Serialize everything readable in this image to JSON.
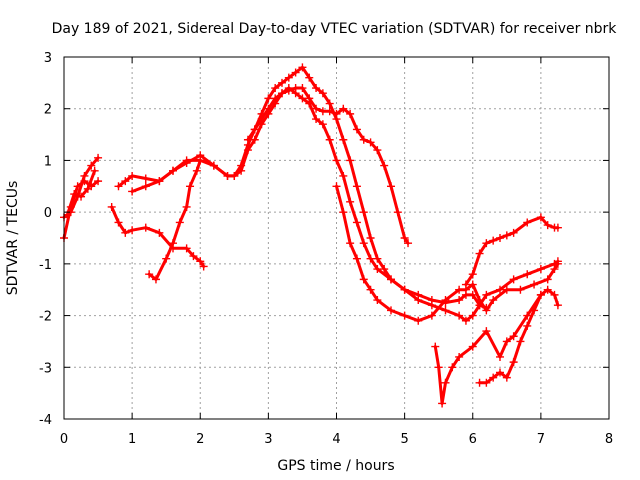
{
  "chart_data": {
    "type": "scatter",
    "title": "Day 189 of 2021, Sidereal Day-to-day VTEC variation (SDTVAR) for receiver nbrk",
    "xlabel": "GPS time / hours",
    "ylabel": "SDTVAR / TECUs",
    "xlim": [
      0,
      8
    ],
    "ylim": [
      -4,
      3
    ],
    "xticks": [
      "0",
      "1",
      "2",
      "3",
      "4",
      "5",
      "6",
      "7",
      "8"
    ],
    "yticks": [
      "-4",
      "-3",
      "-2",
      "-1",
      "0",
      "1",
      "2",
      "3"
    ],
    "grid": true,
    "marker": "+",
    "color": "#ff0000",
    "series": [
      {
        "x": [
          0.0,
          0.1,
          0.2,
          0.3,
          0.4,
          0.5
        ],
        "y": [
          -0.5,
          0.1,
          0.5,
          0.6,
          0.5,
          0.6
        ]
      },
      {
        "x": [
          0.0,
          0.1,
          0.2,
          0.3,
          0.4,
          0.5
        ],
        "y": [
          -0.1,
          0.0,
          0.3,
          0.7,
          0.9,
          1.05
        ]
      },
      {
        "x": [
          0.05,
          0.15,
          0.25,
          0.35,
          0.45
        ],
        "y": [
          -0.05,
          0.35,
          0.3,
          0.45,
          0.8
        ]
      },
      {
        "x": [
          0.7,
          0.8,
          0.9,
          1.0,
          1.2,
          1.4,
          1.6,
          1.8,
          1.9,
          2.0,
          2.05
        ],
        "y": [
          0.1,
          -0.2,
          -0.4,
          -0.35,
          -0.3,
          -0.4,
          -0.7,
          -0.7,
          -0.85,
          -0.95,
          -1.05
        ]
      },
      {
        "x": [
          1.25,
          1.35,
          1.5,
          1.6,
          1.7,
          1.8,
          1.85,
          1.95,
          2.0
        ],
        "y": [
          -1.2,
          -1.3,
          -0.9,
          -0.6,
          -0.2,
          0.1,
          0.5,
          0.8,
          1.0
        ]
      },
      {
        "x": [
          0.8,
          0.9,
          1.0,
          1.2,
          1.4,
          1.6,
          1.8,
          2.0,
          2.2,
          2.4,
          2.5,
          2.6,
          2.7,
          2.8,
          2.9,
          3.0,
          3.1,
          3.2,
          3.3,
          3.4,
          3.5,
          3.6,
          3.7,
          3.8,
          3.9,
          4.0,
          4.1,
          4.2,
          4.3,
          4.4,
          4.5,
          4.6,
          4.7,
          4.8,
          4.9,
          5.0,
          5.05
        ],
        "y": [
          0.5,
          0.6,
          0.7,
          0.65,
          0.6,
          0.8,
          0.95,
          1.1,
          0.9,
          0.7,
          0.7,
          0.9,
          1.3,
          1.6,
          1.8,
          2.0,
          2.2,
          2.3,
          2.35,
          2.4,
          2.4,
          2.2,
          2.0,
          1.95,
          1.95,
          1.9,
          2.0,
          1.9,
          1.6,
          1.4,
          1.35,
          1.2,
          0.9,
          0.5,
          0.0,
          -0.5,
          -0.6
        ]
      },
      {
        "x": [
          1.0,
          1.2,
          1.4,
          1.6,
          1.8,
          2.0,
          2.2,
          2.4,
          2.5,
          2.6,
          2.7,
          2.8,
          2.9,
          3.0,
          3.1,
          3.2,
          3.3,
          3.4,
          3.5,
          3.6,
          3.7,
          3.8,
          3.9,
          4.0,
          4.1,
          4.2,
          4.3,
          4.4,
          4.5,
          4.6,
          4.8,
          5.0,
          5.2,
          5.4,
          5.6,
          5.8,
          5.9,
          6.0,
          6.1,
          6.2
        ],
        "y": [
          0.4,
          0.5,
          0.6,
          0.8,
          1.0,
          1.0,
          0.9,
          0.7,
          0.7,
          0.8,
          1.2,
          1.4,
          1.7,
          1.9,
          2.1,
          2.3,
          2.4,
          2.3,
          2.2,
          2.1,
          1.8,
          1.7,
          1.4,
          1.0,
          0.7,
          0.2,
          -0.2,
          -0.6,
          -0.9,
          -1.1,
          -1.3,
          -1.5,
          -1.6,
          -1.7,
          -1.75,
          -1.7,
          -1.6,
          -1.6,
          -1.8,
          -1.85
        ]
      },
      {
        "x": [
          2.7,
          2.8,
          2.9,
          3.0,
          3.1,
          3.2,
          3.3,
          3.4,
          3.5,
          3.6,
          3.7,
          3.8,
          3.9,
          4.0,
          4.1,
          4.2,
          4.3,
          4.4,
          4.5,
          4.6,
          4.7,
          4.8,
          5.0,
          5.2,
          5.4,
          5.6,
          5.8,
          5.9,
          6.0,
          6.1,
          6.2,
          6.4,
          6.6,
          6.8,
          7.0,
          7.2,
          7.25
        ],
        "y": [
          1.4,
          1.6,
          1.9,
          2.2,
          2.4,
          2.5,
          2.6,
          2.7,
          2.8,
          2.6,
          2.4,
          2.3,
          2.1,
          1.8,
          1.4,
          1.0,
          0.5,
          0.0,
          -0.5,
          -0.9,
          -1.1,
          -1.3,
          -1.5,
          -1.7,
          -1.8,
          -1.9,
          -2.0,
          -2.1,
          -2.0,
          -1.8,
          -1.6,
          -1.5,
          -1.3,
          -1.2,
          -1.1,
          -1.0,
          -0.95
        ]
      },
      {
        "x": [
          4.0,
          4.1,
          4.2,
          4.3,
          4.4,
          4.5,
          4.6,
          4.8,
          5.0,
          5.2,
          5.4,
          5.6,
          5.8,
          5.9,
          6.0,
          6.1,
          6.2,
          6.3,
          6.5,
          6.7,
          6.9,
          7.1,
          7.2,
          7.25
        ],
        "y": [
          0.5,
          0.0,
          -0.6,
          -0.9,
          -1.3,
          -1.5,
          -1.7,
          -1.9,
          -2.0,
          -2.1,
          -2.0,
          -1.7,
          -1.5,
          -1.5,
          -1.4,
          -1.7,
          -1.9,
          -1.7,
          -1.5,
          -1.5,
          -1.4,
          -1.3,
          -1.1,
          -1.0
        ]
      },
      {
        "x": [
          5.9,
          6.0,
          6.1,
          6.2,
          6.3,
          6.4,
          6.5,
          6.6,
          6.8,
          7.0,
          7.1,
          7.2,
          7.25
        ],
        "y": [
          -1.4,
          -1.2,
          -0.8,
          -0.6,
          -0.55,
          -0.5,
          -0.45,
          -0.4,
          -0.2,
          -0.1,
          -0.25,
          -0.3,
          -0.3
        ]
      },
      {
        "x": [
          5.45,
          5.5,
          5.55,
          5.6,
          5.7,
          5.8,
          6.0,
          6.2,
          6.4,
          6.5,
          6.6,
          6.8,
          7.0,
          7.1,
          7.2,
          7.25
        ],
        "y": [
          -2.6,
          -3.0,
          -3.7,
          -3.3,
          -3.0,
          -2.8,
          -2.6,
          -2.3,
          -2.8,
          -2.5,
          -2.4,
          -2.0,
          -1.6,
          -1.5,
          -1.6,
          -1.8
        ]
      },
      {
        "x": [
          6.1,
          6.2,
          6.3,
          6.4,
          6.5,
          6.6,
          6.7,
          6.8,
          6.9,
          7.0
        ],
        "y": [
          -3.3,
          -3.3,
          -3.2,
          -3.1,
          -3.2,
          -2.9,
          -2.5,
          -2.2,
          -1.9,
          -1.6
        ]
      }
    ]
  }
}
